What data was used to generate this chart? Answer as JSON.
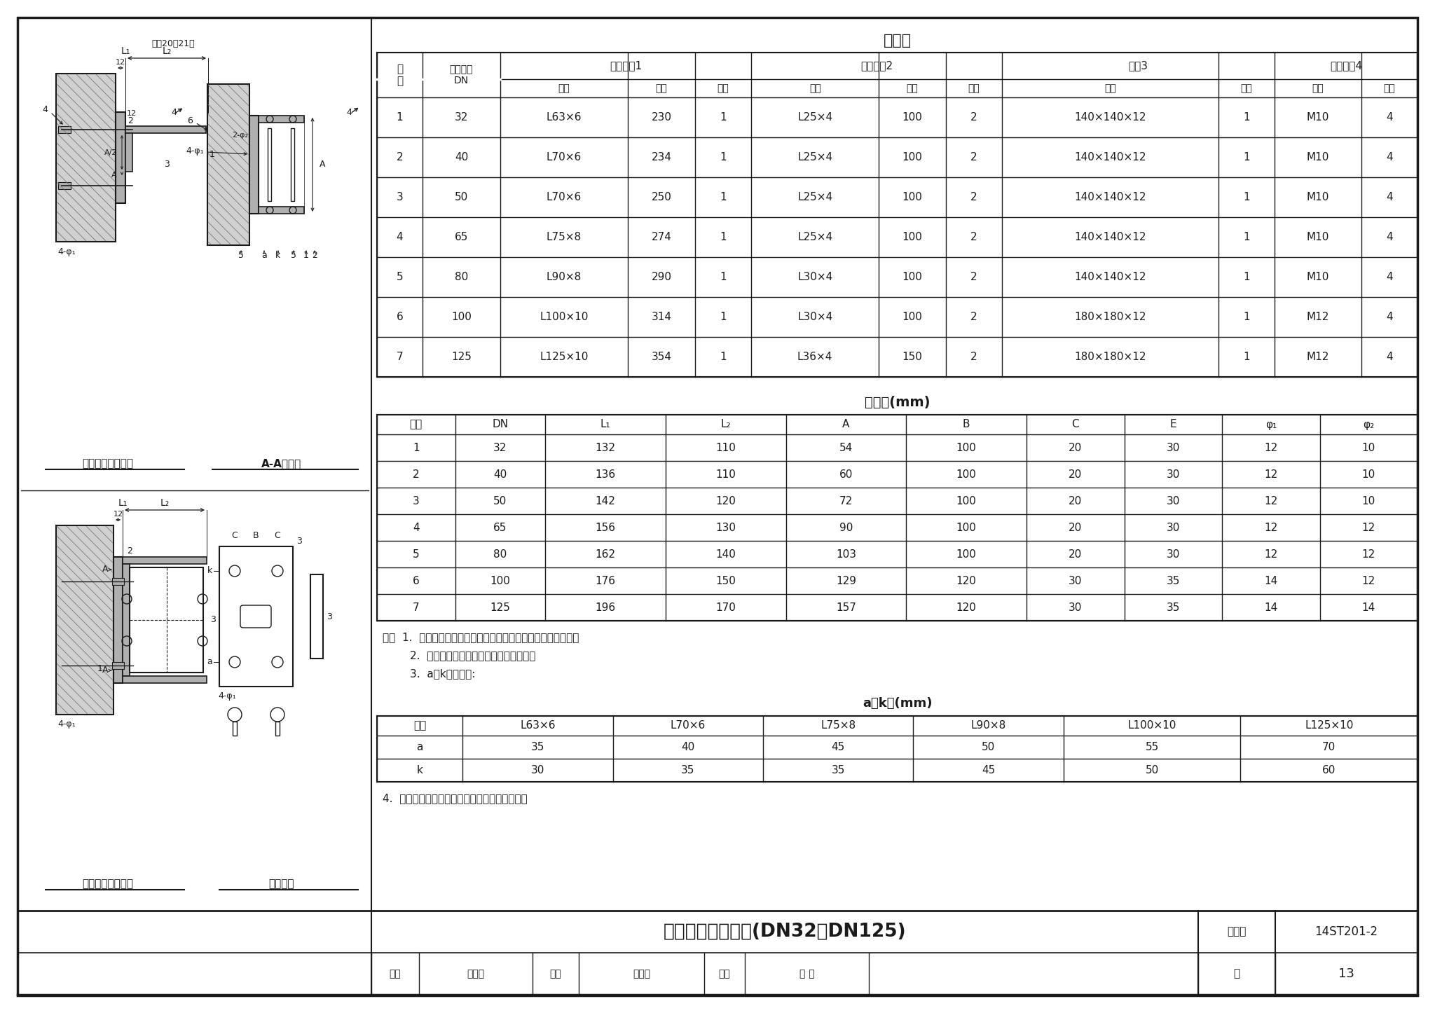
{
  "page_title": "单管固定支架安装(DN32～DN125)",
  "atlas_no": "14ST201-2",
  "page_no": "13",
  "material_table_title": "材料表",
  "dim_table_title": "尺寸表(mm)",
  "ak_table_title": "a、k值(mm)",
  "material_rows": [
    [
      "1",
      "32",
      "L63×6",
      "230",
      "1",
      "L25×4",
      "100",
      "2",
      "140×140×12",
      "1",
      "M10",
      "4"
    ],
    [
      "2",
      "40",
      "L70×6",
      "234",
      "1",
      "L25×4",
      "100",
      "2",
      "140×140×12",
      "1",
      "M10",
      "4"
    ],
    [
      "3",
      "50",
      "L70×6",
      "250",
      "1",
      "L25×4",
      "100",
      "2",
      "140×140×12",
      "1",
      "M10",
      "4"
    ],
    [
      "4",
      "65",
      "L75×8",
      "274",
      "1",
      "L25×4",
      "100",
      "2",
      "140×140×12",
      "1",
      "M10",
      "4"
    ],
    [
      "5",
      "80",
      "L90×8",
      "290",
      "1",
      "L30×4",
      "100",
      "2",
      "140×140×12",
      "1",
      "M10",
      "4"
    ],
    [
      "6",
      "100",
      "L100×10",
      "314",
      "1",
      "L30×4",
      "100",
      "2",
      "180×180×12",
      "1",
      "M12",
      "4"
    ],
    [
      "7",
      "125",
      "L125×10",
      "354",
      "1",
      "L36×4",
      "150",
      "2",
      "180×180×12",
      "1",
      "M12",
      "4"
    ]
  ],
  "dim_rows": [
    [
      "1",
      "32",
      "132",
      "110",
      "54",
      "100",
      "20",
      "30",
      "12",
      "10"
    ],
    [
      "2",
      "40",
      "136",
      "110",
      "60",
      "100",
      "20",
      "30",
      "12",
      "10"
    ],
    [
      "3",
      "50",
      "142",
      "120",
      "72",
      "100",
      "20",
      "30",
      "12",
      "10"
    ],
    [
      "4",
      "65",
      "156",
      "130",
      "90",
      "100",
      "20",
      "30",
      "12",
      "12"
    ],
    [
      "5",
      "80",
      "162",
      "140",
      "103",
      "100",
      "20",
      "30",
      "12",
      "12"
    ],
    [
      "6",
      "100",
      "176",
      "150",
      "129",
      "120",
      "30",
      "35",
      "14",
      "12"
    ],
    [
      "7",
      "125",
      "196",
      "170",
      "157",
      "120",
      "30",
      "35",
      "14",
      "14"
    ]
  ],
  "ak_headers": [
    "角钔",
    "L63×6",
    "L70×6",
    "L75×8",
    "L90×8",
    "L100×10",
    "L125×10"
  ],
  "ak_rows": [
    [
      "a",
      "35",
      "40",
      "45",
      "50",
      "55",
      "70"
    ],
    [
      "k",
      "30",
      "35",
      "35",
      "45",
      "50",
      "60"
    ]
  ],
  "notes_line1": "注：  1.  膨胀螺栌按混凝土建筑锁栌技术规范或规定的要求选用。",
  "notes_line2": "        2.  选用时不符合本图条件，应另行核算。",
  "notes_line3": "        3.  a、k値见下表:",
  "notes_line4": "4.  本图示为水平安装，该图也适用于垂直安装。",
  "bg_color": "#ffffff",
  "line_color": "#1a1a1a",
  "text_color": "#1a1a1a",
  "gray1": "#d0d0d0",
  "gray2": "#b0b0b0",
  "gray3": "#909090",
  "hatch_color": "#606060"
}
